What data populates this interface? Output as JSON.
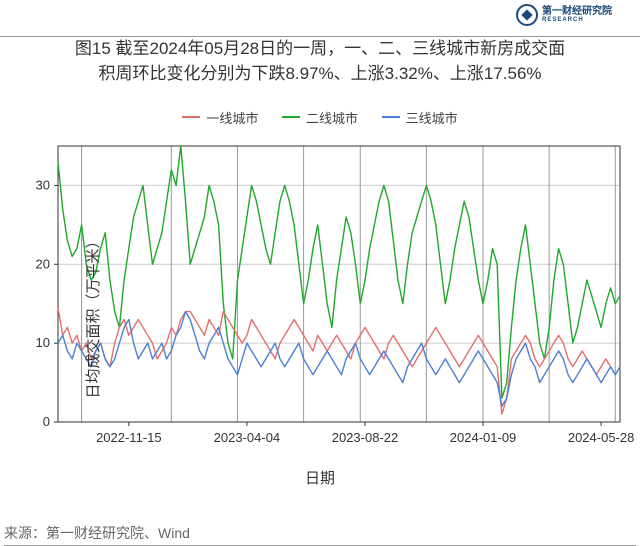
{
  "logo": {
    "name": "第一财经",
    "sub": "研究院",
    "roman": "RESEARCH"
  },
  "title_line1": "图15 截至2024年05月28日的一周，一、二、三线城市新房成交面",
  "title_line2": "积周环比变化分别为下跌8.97%、上涨3.32%、上涨17.56%",
  "legend": {
    "s1": {
      "label": "一线城市",
      "color": "#e36e6e"
    },
    "s2": {
      "label": "二线城市",
      "color": "#1fa82b"
    },
    "s3": {
      "label": "三线城市",
      "color": "#4a7fd6"
    }
  },
  "ylabel": "日均成交面积（万平米）",
  "xlabel": "日期",
  "source": "来源：第一财经研究院、Wind",
  "chart": {
    "type": "line",
    "background": "#ffffff",
    "grid_color": "#cccccc",
    "vline_color": "#999999",
    "axis_color": "#333333",
    "tick_fontsize": 13,
    "line_width": 1.4,
    "ylim": [
      0,
      35
    ],
    "yticks": [
      0,
      10,
      20,
      30
    ],
    "n_points": 120,
    "xticks": [
      {
        "pos": 15,
        "label": "2022-11-15"
      },
      {
        "pos": 40,
        "label": "2023-04-04"
      },
      {
        "pos": 65,
        "label": "2023-08-22"
      },
      {
        "pos": 90,
        "label": "2024-01-09"
      },
      {
        "pos": 115,
        "label": "2024-05-28"
      }
    ],
    "vlines_x": [
      5,
      24,
      38,
      52,
      64,
      78,
      90,
      104,
      118
    ],
    "series": {
      "s1": [
        14.5,
        11,
        12,
        10,
        11,
        9,
        10,
        8,
        9,
        10,
        8,
        7,
        10,
        12,
        13,
        11,
        12,
        13,
        12,
        11,
        10,
        8,
        9,
        10,
        12,
        11,
        13,
        14,
        14,
        13,
        12,
        11,
        13,
        12,
        11,
        14,
        13,
        12,
        11,
        10,
        11,
        13,
        12,
        11,
        10,
        9,
        8,
        10,
        11,
        12,
        13,
        12,
        11,
        10,
        9,
        11,
        10,
        9,
        10,
        11,
        10,
        9,
        8,
        10,
        11,
        12,
        11,
        10,
        9,
        8,
        10,
        11,
        10,
        9,
        8,
        7,
        8,
        9,
        10,
        11,
        12,
        11,
        10,
        9,
        8,
        7,
        8,
        9,
        10,
        11,
        10,
        9,
        8,
        7,
        1,
        3,
        8,
        9,
        10,
        11,
        10,
        8,
        7,
        8,
        9,
        10,
        11,
        10,
        8,
        7,
        8,
        9,
        8,
        7,
        6,
        7,
        8,
        7,
        6,
        7
      ],
      "s2": [
        33,
        27,
        23,
        21,
        22,
        25,
        20,
        18,
        19,
        22,
        24,
        18,
        14,
        12,
        18,
        22,
        26,
        28,
        30,
        25,
        20,
        22,
        24,
        28,
        32,
        30,
        35,
        28,
        20,
        22,
        24,
        26,
        30,
        28,
        25,
        15,
        10,
        8,
        18,
        22,
        26,
        30,
        28,
        25,
        22,
        20,
        24,
        28,
        30,
        28,
        25,
        20,
        15,
        18,
        22,
        25,
        20,
        15,
        12,
        18,
        22,
        26,
        24,
        20,
        15,
        18,
        22,
        25,
        28,
        30,
        28,
        23,
        18,
        15,
        20,
        24,
        26,
        28,
        30,
        28,
        25,
        20,
        15,
        18,
        22,
        25,
        28,
        26,
        22,
        18,
        15,
        18,
        22,
        20,
        3,
        5,
        12,
        18,
        22,
        25,
        20,
        15,
        10,
        8,
        12,
        18,
        22,
        20,
        15,
        10,
        12,
        15,
        18,
        16,
        14,
        12,
        15,
        17,
        15,
        16
      ],
      "s3": [
        10,
        11,
        9,
        8,
        10,
        9,
        8,
        7,
        9,
        10,
        8,
        7,
        8,
        10,
        12,
        13,
        10,
        8,
        9,
        10,
        8,
        9,
        10,
        8,
        9,
        11,
        12,
        14,
        13,
        11,
        9,
        8,
        10,
        11,
        12,
        10,
        8,
        7,
        6,
        8,
        10,
        9,
        8,
        7,
        8,
        9,
        10,
        8,
        7,
        8,
        9,
        10,
        8,
        7,
        6,
        7,
        8,
        9,
        8,
        7,
        6,
        8,
        9,
        10,
        8,
        7,
        6,
        7,
        8,
        9,
        8,
        7,
        6,
        5,
        7,
        8,
        9,
        10,
        8,
        7,
        6,
        7,
        8,
        7,
        6,
        5,
        6,
        7,
        8,
        9,
        8,
        7,
        6,
        5,
        2,
        3,
        6,
        8,
        9,
        10,
        8,
        7,
        5,
        6,
        7,
        8,
        9,
        8,
        6,
        5,
        6,
        7,
        8,
        7,
        6,
        5,
        6,
        7,
        6,
        7
      ]
    }
  }
}
